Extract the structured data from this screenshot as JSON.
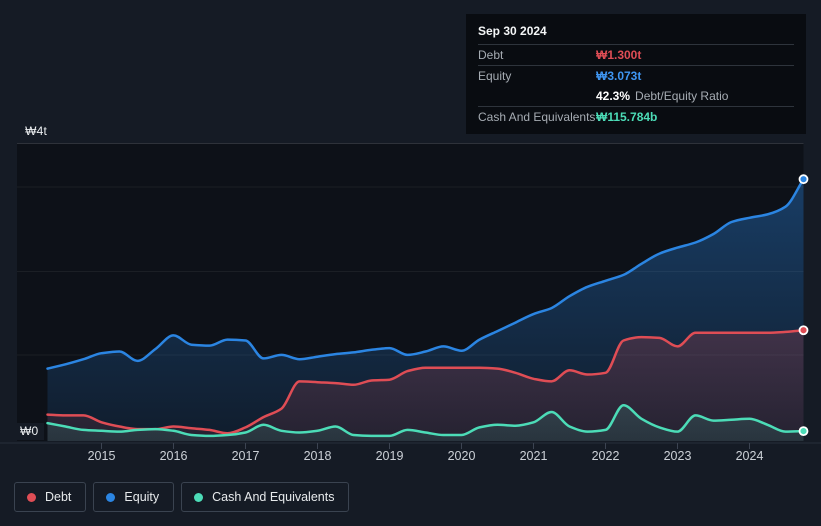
{
  "tooltip": {
    "date": "Sep 30 2024",
    "debt_label": "Debt",
    "debt_value": "₩1.300t",
    "equity_label": "Equity",
    "equity_value": "₩3.073t",
    "ratio_value": "42.3%",
    "ratio_label": "Debt/Equity Ratio",
    "cash_label": "Cash And Equivalents",
    "cash_value": "₩115.784b"
  },
  "axes": {
    "y_max_label": "₩4t",
    "y_min_label": "₩0",
    "x_tick_labels": [
      "2015",
      "2016",
      "2017",
      "2018",
      "2019",
      "2020",
      "2021",
      "2022",
      "2023",
      "2024"
    ]
  },
  "legend": [
    {
      "label": "Debt",
      "color": "#df4d55"
    },
    {
      "label": "Equity",
      "color": "#2b85e2"
    },
    {
      "label": "Cash And Equivalents",
      "color": "#4cdcb7"
    }
  ],
  "chart_data": {
    "type": "area",
    "title": "Debt to Equity History",
    "y_unit": "trillions of KRW (₩t)",
    "ylim": [
      0,
      4
    ],
    "grid": true,
    "legend_position": "bottom-left",
    "x_ticks": [
      2015,
      2016,
      2017,
      2018,
      2019,
      2020,
      2021,
      2022,
      2023,
      2024
    ],
    "x": [
      2014.25,
      2014.5,
      2014.75,
      2015,
      2015.25,
      2015.5,
      2015.75,
      2016,
      2016.25,
      2016.5,
      2016.75,
      2017,
      2017.25,
      2017.5,
      2017.75,
      2018,
      2018.25,
      2018.5,
      2018.75,
      2019,
      2019.25,
      2019.5,
      2019.75,
      2020,
      2020.25,
      2020.5,
      2020.75,
      2021,
      2021.25,
      2021.5,
      2021.75,
      2022,
      2022.25,
      2022.5,
      2022.75,
      2023,
      2023.25,
      2023.5,
      2023.75,
      2024,
      2024.25,
      2024.5,
      2024.75
    ],
    "series": [
      {
        "name": "Debt",
        "color": "#df4d55",
        "values": [
          0.31,
          0.3,
          0.3,
          0.22,
          0.17,
          0.14,
          0.14,
          0.17,
          0.15,
          0.13,
          0.09,
          0.16,
          0.28,
          0.38,
          0.7,
          0.69,
          0.68,
          0.66,
          0.71,
          0.72,
          0.82,
          0.86,
          0.86,
          0.86,
          0.86,
          0.85,
          0.8,
          0.73,
          0.7,
          0.83,
          0.78,
          0.8,
          1.18,
          1.22,
          1.21,
          1.11,
          1.27,
          1.27,
          1.27,
          1.27,
          1.27,
          1.28,
          1.3
        ],
        "last_label": "₩1.300t"
      },
      {
        "name": "Equity",
        "color": "#2b85e2",
        "values": [
          0.85,
          0.9,
          0.96,
          1.03,
          1.05,
          0.94,
          1.08,
          1.24,
          1.13,
          1.12,
          1.19,
          1.18,
          0.97,
          1.01,
          0.96,
          0.99,
          1.02,
          1.04,
          1.07,
          1.09,
          1.01,
          1.05,
          1.11,
          1.06,
          1.19,
          1.29,
          1.39,
          1.49,
          1.56,
          1.7,
          1.81,
          1.88,
          1.95,
          2.08,
          2.2,
          2.27,
          2.33,
          2.43,
          2.57,
          2.62,
          2.66,
          2.75,
          3.073
        ],
        "last_label": "₩3.073t"
      },
      {
        "name": "Cash And Equivalents",
        "color": "#4cdcb7",
        "values": [
          0.21,
          0.17,
          0.13,
          0.12,
          0.11,
          0.13,
          0.14,
          0.12,
          0.07,
          0.06,
          0.07,
          0.1,
          0.19,
          0.12,
          0.1,
          0.12,
          0.17,
          0.07,
          0.06,
          0.06,
          0.13,
          0.1,
          0.07,
          0.07,
          0.16,
          0.19,
          0.18,
          0.22,
          0.34,
          0.17,
          0.11,
          0.13,
          0.42,
          0.26,
          0.16,
          0.11,
          0.3,
          0.24,
          0.25,
          0.26,
          0.19,
          0.11,
          0.116
        ],
        "last_label": "₩115.784b"
      }
    ]
  }
}
